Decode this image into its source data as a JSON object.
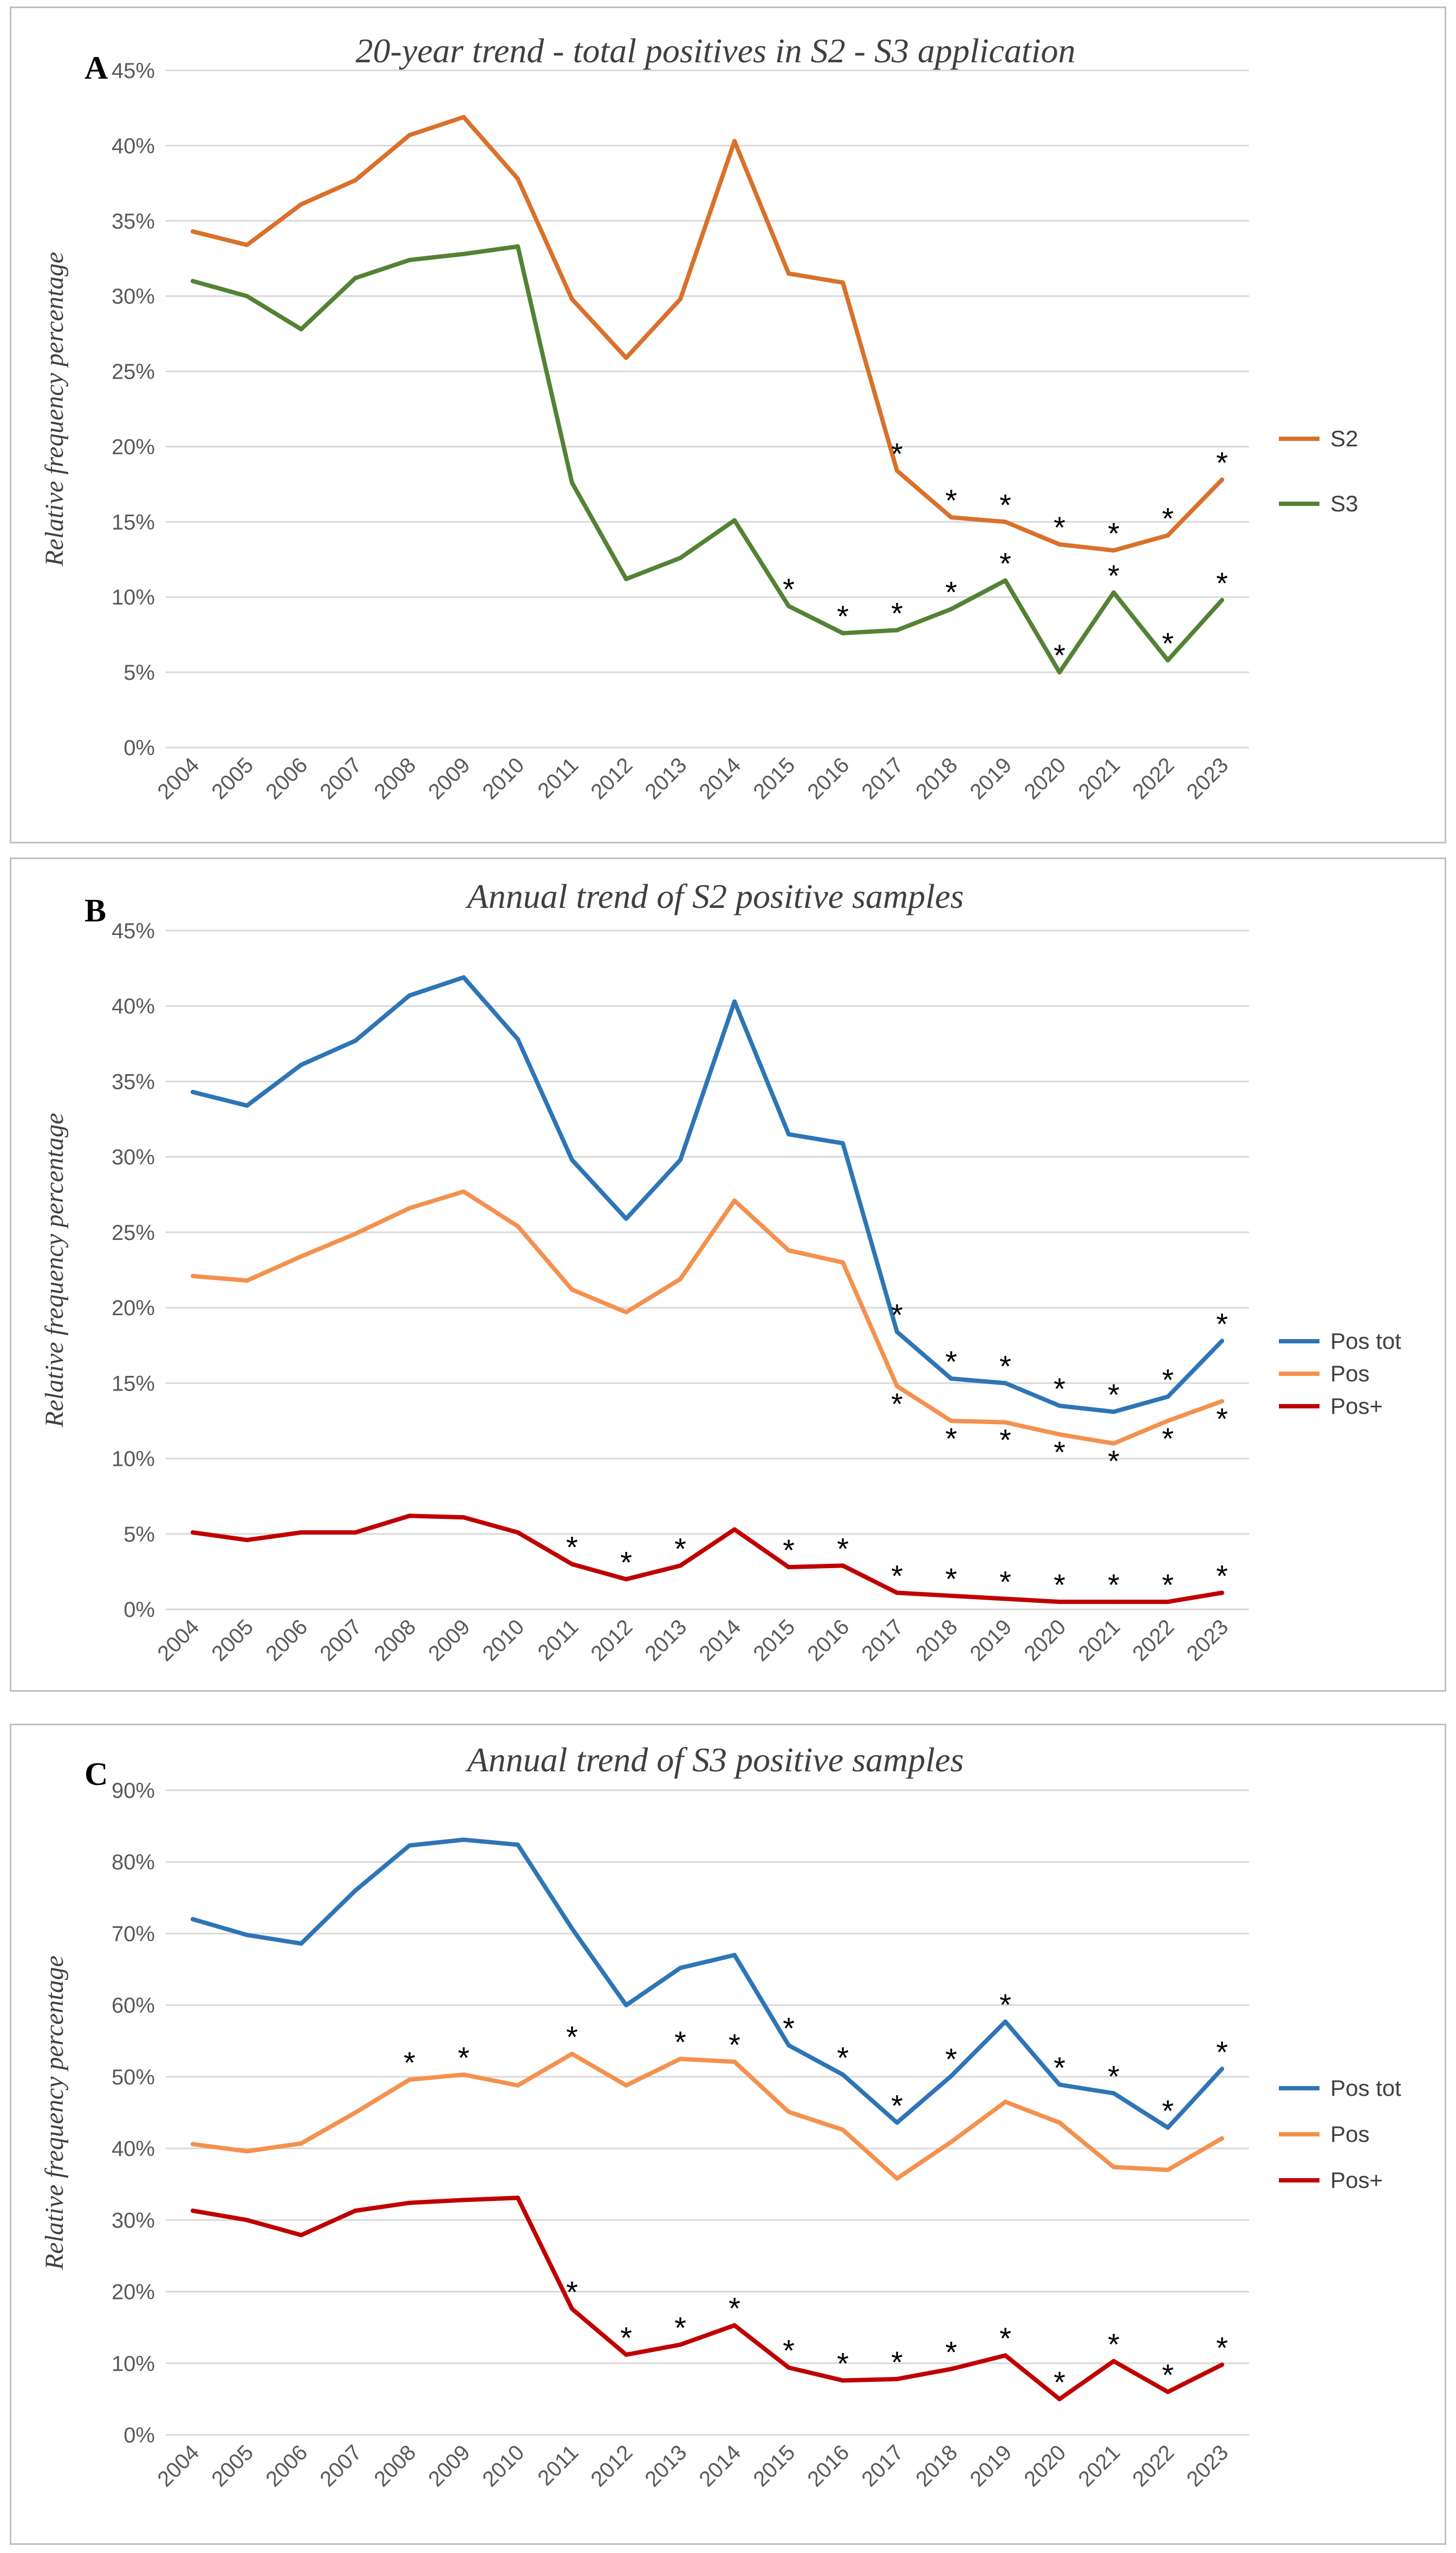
{
  "chart_data": [
    {
      "type": "line",
      "panel_letter": "A",
      "title": "20-year trend - total positives in S2 - S3 application",
      "ylabel": "Relative frequency percentage",
      "xlabel": "",
      "ylim": [
        0,
        45
      ],
      "y_ticks": [
        0,
        5,
        10,
        15,
        20,
        25,
        30,
        35,
        40,
        45
      ],
      "y_tick_labels": [
        "0%",
        "5%",
        "10%",
        "15%",
        "20%",
        "25%",
        "30%",
        "35%",
        "40%",
        "45%"
      ],
      "categories": [
        "2004",
        "2005",
        "2006",
        "2007",
        "2008",
        "2009",
        "2010",
        "2011",
        "2012",
        "2013",
        "2014",
        "2015",
        "2016",
        "2017",
        "2018",
        "2019",
        "2020",
        "2021",
        "2022",
        "2023"
      ],
      "legend_position": "right",
      "series": [
        {
          "name": "S2",
          "color": "#d9712b",
          "values": [
            34.3,
            33.4,
            36.1,
            37.7,
            40.7,
            41.9,
            37.8,
            29.8,
            25.9,
            29.8,
            40.3,
            31.5,
            30.9,
            18.4,
            15.3,
            15.0,
            13.5,
            13.1,
            14.1,
            17.8
          ],
          "asterisks": [
            false,
            false,
            false,
            false,
            false,
            false,
            false,
            false,
            false,
            false,
            false,
            false,
            false,
            true,
            true,
            true,
            true,
            true,
            true,
            true
          ],
          "asterisk_above": true
        },
        {
          "name": "S3",
          "color": "#548235",
          "values": [
            31.0,
            30.0,
            27.8,
            31.2,
            32.4,
            32.8,
            33.3,
            17.6,
            11.2,
            12.6,
            15.1,
            9.4,
            7.6,
            7.8,
            9.2,
            11.1,
            5.0,
            10.3,
            5.8,
            9.8
          ],
          "asterisks": [
            false,
            false,
            false,
            false,
            false,
            false,
            false,
            false,
            false,
            false,
            false,
            true,
            true,
            true,
            true,
            true,
            true,
            true,
            true,
            true
          ],
          "asterisk_above": true
        }
      ]
    },
    {
      "type": "line",
      "panel_letter": "B",
      "title": "Annual trend of S2 positive samples",
      "ylabel": "Relative frequency percentage",
      "xlabel": "",
      "ylim": [
        0,
        45
      ],
      "y_ticks": [
        0,
        5,
        10,
        15,
        20,
        25,
        30,
        35,
        40,
        45
      ],
      "y_tick_labels": [
        "0%",
        "5%",
        "10%",
        "15%",
        "20%",
        "25%",
        "30%",
        "35%",
        "40%",
        "45%"
      ],
      "categories": [
        "2004",
        "2005",
        "2006",
        "2007",
        "2008",
        "2009",
        "2010",
        "2011",
        "2012",
        "2013",
        "2014",
        "2015",
        "2016",
        "2017",
        "2018",
        "2019",
        "2020",
        "2021",
        "2022",
        "2023"
      ],
      "legend_position": "right",
      "series": [
        {
          "name": "Pos tot",
          "color": "#2e75b6",
          "values": [
            34.3,
            33.4,
            36.1,
            37.7,
            40.7,
            41.9,
            37.8,
            29.8,
            25.9,
            29.8,
            40.3,
            31.5,
            30.9,
            18.4,
            15.3,
            15.0,
            13.5,
            13.1,
            14.1,
            17.8
          ],
          "asterisks": [
            false,
            false,
            false,
            false,
            false,
            false,
            false,
            false,
            false,
            false,
            false,
            false,
            false,
            true,
            true,
            true,
            true,
            true,
            true,
            true
          ],
          "asterisk_above": true
        },
        {
          "name": "Pos",
          "color": "#f4914e",
          "values": [
            22.1,
            21.8,
            23.4,
            24.9,
            26.6,
            27.7,
            25.4,
            21.2,
            19.7,
            21.9,
            27.1,
            23.8,
            23.0,
            14.8,
            12.5,
            12.4,
            11.6,
            11.0,
            12.5,
            13.8
          ],
          "asterisks": [
            false,
            false,
            false,
            false,
            false,
            false,
            false,
            false,
            false,
            false,
            false,
            false,
            false,
            true,
            true,
            true,
            true,
            true,
            true,
            true
          ],
          "asterisk_above": false
        },
        {
          "name": "Pos+",
          "color": "#c00000",
          "values": [
            5.1,
            4.6,
            5.1,
            5.1,
            6.2,
            6.1,
            5.1,
            3.0,
            2.0,
            2.9,
            5.3,
            2.8,
            2.9,
            1.1,
            0.9,
            0.7,
            0.5,
            0.5,
            0.5,
            1.1
          ],
          "asterisks": [
            false,
            false,
            false,
            false,
            false,
            false,
            false,
            true,
            true,
            true,
            false,
            true,
            true,
            true,
            true,
            true,
            true,
            true,
            true,
            true
          ],
          "asterisk_above": true
        }
      ]
    },
    {
      "type": "line",
      "panel_letter": "C",
      "title": "Annual trend of S3 positive samples",
      "ylabel": "Relative frequency percentage",
      "xlabel": "",
      "ylim": [
        0,
        90
      ],
      "y_ticks": [
        0,
        10,
        20,
        30,
        40,
        50,
        60,
        70,
        80,
        90
      ],
      "y_tick_labels": [
        "0%",
        "10%",
        "20%",
        "30%",
        "40%",
        "50%",
        "60%",
        "70%",
        "80%",
        "90%"
      ],
      "categories": [
        "2004",
        "2005",
        "2006",
        "2007",
        "2008",
        "2009",
        "2010",
        "2011",
        "2012",
        "2013",
        "2014",
        "2015",
        "2016",
        "2017",
        "2018",
        "2019",
        "2020",
        "2021",
        "2022",
        "2023"
      ],
      "legend_position": "right",
      "series": [
        {
          "name": "Pos tot",
          "color": "#2e75b6",
          "values": [
            72.0,
            69.8,
            68.6,
            76.0,
            82.3,
            83.1,
            82.4,
            70.7,
            60.0,
            65.2,
            67.0,
            54.4,
            50.3,
            43.6,
            50.1,
            57.7,
            48.9,
            47.7,
            42.9,
            51.1
          ],
          "asterisks": [
            false,
            false,
            false,
            false,
            false,
            false,
            false,
            false,
            false,
            false,
            false,
            true,
            true,
            true,
            true,
            true,
            true,
            true,
            true,
            true
          ],
          "asterisk_above": true
        },
        {
          "name": "Pos",
          "color": "#f4914e",
          "values": [
            40.6,
            39.6,
            40.7,
            45.0,
            49.6,
            50.3,
            48.8,
            53.2,
            48.8,
            52.5,
            52.1,
            45.1,
            42.6,
            35.8,
            40.9,
            46.5,
            43.6,
            37.4,
            37.0,
            41.4
          ],
          "asterisks": [
            false,
            false,
            false,
            false,
            true,
            true,
            false,
            true,
            false,
            true,
            true,
            false,
            false,
            false,
            false,
            false,
            false,
            false,
            false,
            false
          ],
          "asterisk_above": true
        },
        {
          "name": "Pos+",
          "color": "#c00000",
          "values": [
            31.3,
            30.0,
            27.9,
            31.3,
            32.4,
            32.8,
            33.1,
            17.6,
            11.2,
            12.6,
            15.3,
            9.4,
            7.6,
            7.8,
            9.2,
            11.1,
            5.0,
            10.3,
            6.0,
            9.8
          ],
          "asterisks": [
            false,
            false,
            false,
            false,
            false,
            false,
            false,
            true,
            true,
            true,
            true,
            true,
            true,
            true,
            true,
            true,
            true,
            true,
            true,
            true
          ],
          "asterisk_above": true
        }
      ]
    }
  ]
}
